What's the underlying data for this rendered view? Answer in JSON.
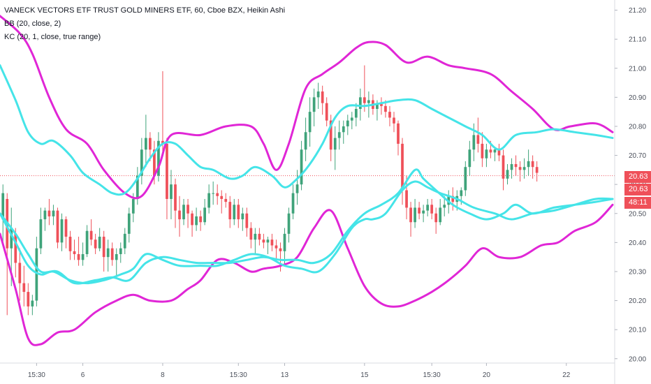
{
  "legend": {
    "title": "VANECK VECTORS ETF TRUST GOLD MINERS ETF, 60, Cboe BZX, Heikin Ashi",
    "bb": "BB (20, close, 2)",
    "kc": "KC (20, 1, close, true range)"
  },
  "price_tags": {
    "last_top": "20.63",
    "last_bottom": "20.63",
    "countdown": "48:11"
  },
  "colors": {
    "up": "#3fa37a",
    "down": "#ef5059",
    "bb": "#e026d6",
    "kc": "#45e4e8",
    "last_line": "#ef5059",
    "axis_text": "#4a4f5a",
    "tag_bg": "#ef5059"
  },
  "chart_data": {
    "type": "candlestick",
    "y_axis": {
      "position": "right",
      "ylim": [
        19.985,
        21.235
      ],
      "ticks": [
        21.2,
        21.1,
        21.0,
        20.9,
        20.8,
        20.7,
        20.6,
        20.5,
        20.4,
        20.3,
        20.2,
        20.1,
        20.0
      ],
      "tick_labels": [
        "21.20",
        "21.10",
        "21.00",
        "20.90",
        "20.80",
        "20.70",
        "20.60",
        "20.50",
        "20.40",
        "20.30",
        "20.20",
        "20.10",
        "20.00"
      ]
    },
    "x_axis": {
      "bar_index_range": [
        -0.7,
        145.5
      ],
      "tick_labels": [
        "15:30",
        "6",
        "8",
        "15:30",
        "13",
        "15",
        "15:30",
        "20",
        "22"
      ],
      "tick_bar_index": [
        8,
        19,
        38,
        56,
        67,
        86,
        102,
        115,
        134
      ]
    },
    "last_price": 20.63,
    "candles_ohlc": [
      [
        20.48,
        20.6,
        20.4,
        20.57
      ],
      [
        20.55,
        20.57,
        20.15,
        20.38
      ],
      [
        20.38,
        20.52,
        20.25,
        20.45
      ],
      [
        20.43,
        20.45,
        20.28,
        20.33
      ],
      [
        20.33,
        20.38,
        20.2,
        20.26
      ],
      [
        20.26,
        20.32,
        20.18,
        20.23
      ],
      [
        20.23,
        20.26,
        20.15,
        20.18
      ],
      [
        20.18,
        20.22,
        20.15,
        20.2
      ],
      [
        20.2,
        20.42,
        20.18,
        20.38
      ],
      [
        20.38,
        20.52,
        20.36,
        20.48
      ],
      [
        20.48,
        20.52,
        20.44,
        20.51
      ],
      [
        20.51,
        20.55,
        20.46,
        20.49
      ],
      [
        20.49,
        20.53,
        20.46,
        20.51
      ],
      [
        20.51,
        20.52,
        20.38,
        20.4
      ],
      [
        20.4,
        20.5,
        20.37,
        20.48
      ],
      [
        20.48,
        20.49,
        20.38,
        20.42
      ],
      [
        20.42,
        20.44,
        20.34,
        20.37
      ],
      [
        20.37,
        20.41,
        20.34,
        20.36
      ],
      [
        20.36,
        20.42,
        20.32,
        20.34
      ],
      [
        20.34,
        20.4,
        20.32,
        20.36
      ],
      [
        20.36,
        20.46,
        20.35,
        20.44
      ],
      [
        20.44,
        20.48,
        20.39,
        20.41
      ],
      [
        20.41,
        20.43,
        20.36,
        20.38
      ],
      [
        20.38,
        20.45,
        20.37,
        20.42
      ],
      [
        20.42,
        20.44,
        20.3,
        20.35
      ],
      [
        20.35,
        20.41,
        20.3,
        20.38
      ],
      [
        20.38,
        20.4,
        20.32,
        20.34
      ],
      [
        20.34,
        20.38,
        20.28,
        20.36
      ],
      [
        20.36,
        20.4,
        20.33,
        20.38
      ],
      [
        20.38,
        20.45,
        20.36,
        20.43
      ],
      [
        20.43,
        20.52,
        20.4,
        20.5
      ],
      [
        20.5,
        20.57,
        20.47,
        20.55
      ],
      [
        20.55,
        20.66,
        20.53,
        20.63
      ],
      [
        20.63,
        20.76,
        20.6,
        20.72
      ],
      [
        20.72,
        20.84,
        20.66,
        20.76
      ],
      [
        20.76,
        20.78,
        20.68,
        20.72
      ],
      [
        20.72,
        20.75,
        20.6,
        20.63
      ],
      [
        20.63,
        20.78,
        20.61,
        20.75
      ],
      [
        20.75,
        20.99,
        20.7,
        20.74
      ],
      [
        20.74,
        20.76,
        20.48,
        20.55
      ],
      [
        20.55,
        20.65,
        20.48,
        20.6
      ],
      [
        20.6,
        20.62,
        20.45,
        20.51
      ],
      [
        20.51,
        20.56,
        20.42,
        20.48
      ],
      [
        20.48,
        20.55,
        20.46,
        20.53
      ],
      [
        20.53,
        20.55,
        20.45,
        20.5
      ],
      [
        20.5,
        20.51,
        20.42,
        20.46
      ],
      [
        20.46,
        20.52,
        20.44,
        20.49
      ],
      [
        20.49,
        20.51,
        20.44,
        20.47
      ],
      [
        20.47,
        20.55,
        20.46,
        20.52
      ],
      [
        20.52,
        20.6,
        20.5,
        20.57
      ],
      [
        20.57,
        20.61,
        20.53,
        20.57
      ],
      [
        20.57,
        20.6,
        20.53,
        20.56
      ],
      [
        20.56,
        20.58,
        20.5,
        20.55
      ],
      [
        20.55,
        20.57,
        20.52,
        20.54
      ],
      [
        20.54,
        20.56,
        20.45,
        20.48
      ],
      [
        20.48,
        20.55,
        20.46,
        20.53
      ],
      [
        20.53,
        20.55,
        20.45,
        20.48
      ],
      [
        20.48,
        20.52,
        20.44,
        20.5
      ],
      [
        20.5,
        20.52,
        20.42,
        20.45
      ],
      [
        20.45,
        20.47,
        20.38,
        20.41
      ],
      [
        20.41,
        20.45,
        20.36,
        20.43
      ],
      [
        20.43,
        20.45,
        20.39,
        20.41
      ],
      [
        20.41,
        20.43,
        20.38,
        20.4
      ],
      [
        20.4,
        20.42,
        20.36,
        20.41
      ],
      [
        20.41,
        20.43,
        20.37,
        20.39
      ],
      [
        20.39,
        20.41,
        20.34,
        20.38
      ],
      [
        20.38,
        20.4,
        20.3,
        20.37
      ],
      [
        20.37,
        20.45,
        20.32,
        20.43
      ],
      [
        20.43,
        20.52,
        20.4,
        20.5
      ],
      [
        20.5,
        20.6,
        20.48,
        20.57
      ],
      [
        20.57,
        20.65,
        20.53,
        20.6
      ],
      [
        20.6,
        20.75,
        20.58,
        20.72
      ],
      [
        20.72,
        20.83,
        20.68,
        20.78
      ],
      [
        20.78,
        20.9,
        20.73,
        20.85
      ],
      [
        20.85,
        20.93,
        20.8,
        20.9
      ],
      [
        20.9,
        20.95,
        20.86,
        20.92
      ],
      [
        20.92,
        20.94,
        20.84,
        20.88
      ],
      [
        20.88,
        20.9,
        20.8,
        20.82
      ],
      [
        20.82,
        20.84,
        20.68,
        20.72
      ],
      [
        20.72,
        20.8,
        20.65,
        20.76
      ],
      [
        20.76,
        20.82,
        20.72,
        20.78
      ],
      [
        20.78,
        20.82,
        20.74,
        20.8
      ],
      [
        20.8,
        20.84,
        20.77,
        20.82
      ],
      [
        20.82,
        20.85,
        20.79,
        20.83
      ],
      [
        20.83,
        20.88,
        20.8,
        20.86
      ],
      [
        20.86,
        20.93,
        20.82,
        20.9
      ],
      [
        20.9,
        21.01,
        20.85,
        20.88
      ],
      [
        20.88,
        20.92,
        20.83,
        20.89
      ],
      [
        20.89,
        20.91,
        20.84,
        20.86
      ],
      [
        20.86,
        20.89,
        20.82,
        20.88
      ],
      [
        20.88,
        20.9,
        20.84,
        20.87
      ],
      [
        20.87,
        20.89,
        20.83,
        20.85
      ],
      [
        20.85,
        20.87,
        20.8,
        20.83
      ],
      [
        20.83,
        20.85,
        20.78,
        20.81
      ],
      [
        20.81,
        20.82,
        20.7,
        20.74
      ],
      [
        20.74,
        20.76,
        20.53,
        20.58
      ],
      [
        20.58,
        20.63,
        20.48,
        20.52
      ],
      [
        20.52,
        20.54,
        20.42,
        20.47
      ],
      [
        20.47,
        20.55,
        20.45,
        20.52
      ],
      [
        20.52,
        20.54,
        20.48,
        20.5
      ],
      [
        20.5,
        20.53,
        20.47,
        20.51
      ],
      [
        20.51,
        20.55,
        20.49,
        20.53
      ],
      [
        20.53,
        20.55,
        20.48,
        20.5
      ],
      [
        20.5,
        20.52,
        20.43,
        20.47
      ],
      [
        20.47,
        20.55,
        20.46,
        20.52
      ],
      [
        20.52,
        20.56,
        20.49,
        20.53
      ],
      [
        20.53,
        20.58,
        20.5,
        20.56
      ],
      [
        20.56,
        20.59,
        20.51,
        20.54
      ],
      [
        20.54,
        20.58,
        20.51,
        20.56
      ],
      [
        20.56,
        20.59,
        20.53,
        20.58
      ],
      [
        20.58,
        20.68,
        20.56,
        20.66
      ],
      [
        20.66,
        20.75,
        20.63,
        20.72
      ],
      [
        20.72,
        20.81,
        20.68,
        20.77
      ],
      [
        20.77,
        20.83,
        20.71,
        20.74
      ],
      [
        20.74,
        20.78,
        20.66,
        20.69
      ],
      [
        20.69,
        20.74,
        20.66,
        20.72
      ],
      [
        20.72,
        20.75,
        20.69,
        20.71
      ],
      [
        20.71,
        20.73,
        20.68,
        20.72
      ],
      [
        20.72,
        20.74,
        20.68,
        20.7
      ],
      [
        20.7,
        20.72,
        20.58,
        20.62
      ],
      [
        20.62,
        20.67,
        20.6,
        20.65
      ],
      [
        20.65,
        20.69,
        20.62,
        20.67
      ],
      [
        20.67,
        20.7,
        20.63,
        20.66
      ],
      [
        20.66,
        20.68,
        20.61,
        20.65
      ],
      [
        20.65,
        20.69,
        20.62,
        20.66
      ],
      [
        20.66,
        20.72,
        20.63,
        20.68
      ],
      [
        20.68,
        20.7,
        20.62,
        20.66
      ],
      [
        20.66,
        20.68,
        20.61,
        20.64
      ]
    ],
    "series": [
      {
        "name": "BB (20, close, 2)",
        "kind": "upper",
        "color": "#e026d6",
        "x": [
          -0.7,
          4,
          7,
          11,
          15,
          20,
          24,
          29,
          33,
          37,
          40,
          47,
          53,
          59,
          62,
          65,
          68,
          72,
          76,
          80,
          84,
          87,
          91,
          96,
          101,
          106,
          110,
          116,
          121,
          126,
          131,
          135,
          141,
          145
        ],
        "y": [
          21.18,
          21.12,
          21.05,
          20.9,
          20.79,
          20.74,
          20.65,
          20.57,
          20.56,
          20.66,
          20.77,
          20.77,
          20.8,
          20.8,
          20.74,
          20.65,
          20.74,
          20.93,
          20.98,
          21.02,
          21.07,
          21.09,
          21.08,
          21.02,
          21.04,
          21.01,
          21.0,
          20.98,
          20.92,
          20.86,
          20.79,
          20.8,
          20.81,
          20.78
        ]
      },
      {
        "name": "BB (20, close, 2)",
        "kind": "lower",
        "color": "#e026d6",
        "x": [
          -0.7,
          3,
          6,
          9,
          13,
          17,
          22,
          27,
          31,
          35,
          40,
          44,
          47,
          51,
          55,
          59,
          62,
          66,
          70,
          74,
          78,
          82,
          86,
          90,
          94,
          98,
          102,
          106,
          110,
          114,
          118,
          123,
          128,
          132,
          136,
          141,
          145
        ],
        "y": [
          20.43,
          20.24,
          20.07,
          20.05,
          20.09,
          20.1,
          20.16,
          20.2,
          20.22,
          20.2,
          20.2,
          20.24,
          20.27,
          20.34,
          20.33,
          20.3,
          20.31,
          20.32,
          20.35,
          20.45,
          20.51,
          20.38,
          20.25,
          20.19,
          20.18,
          20.2,
          20.23,
          20.27,
          20.32,
          20.38,
          20.35,
          20.35,
          20.39,
          20.4,
          20.44,
          20.47,
          20.53
        ]
      },
      {
        "name": "KC (20, 1, close, true range)",
        "kind": "upper",
        "color": "#45e4e8",
        "x": [
          -0.7,
          3,
          6,
          9,
          12,
          16,
          19,
          23,
          26,
          29,
          32,
          35,
          38,
          41,
          44,
          47,
          50,
          54,
          57,
          60,
          64,
          67,
          70,
          73,
          76,
          79,
          82,
          86,
          90,
          94,
          98,
          102,
          106,
          110,
          114,
          118,
          122,
          127,
          131,
          136,
          141,
          145
        ],
        "y": [
          21.01,
          20.89,
          20.78,
          20.74,
          20.75,
          20.7,
          20.64,
          20.6,
          20.57,
          20.57,
          20.62,
          20.69,
          20.74,
          20.74,
          20.7,
          20.66,
          20.65,
          20.62,
          20.63,
          20.66,
          20.63,
          20.59,
          20.62,
          20.67,
          20.74,
          20.83,
          20.87,
          20.87,
          20.88,
          20.89,
          20.89,
          20.86,
          20.83,
          20.8,
          20.77,
          20.72,
          20.77,
          20.78,
          20.79,
          20.78,
          20.77,
          20.76
        ]
      },
      {
        "name": "KC (20, 1, close, true range)",
        "kind": "middle",
        "color": "#45e4e8",
        "x": [
          -0.7,
          3,
          6,
          9,
          12,
          16,
          20,
          24,
          28,
          31,
          34,
          38,
          42,
          47,
          51,
          55,
          59,
          63,
          67,
          71,
          75,
          79,
          83,
          86,
          88,
          91,
          95,
          98,
          101,
          104,
          108,
          112,
          117,
          121,
          126,
          131,
          136,
          141,
          145
        ],
        "y": [
          20.5,
          20.4,
          20.32,
          20.29,
          20.3,
          20.27,
          20.26,
          20.27,
          20.29,
          20.31,
          20.36,
          20.34,
          20.32,
          20.32,
          20.32,
          20.34,
          20.36,
          20.35,
          20.32,
          20.31,
          20.3,
          20.36,
          20.45,
          20.48,
          20.48,
          20.5,
          20.58,
          20.61,
          20.59,
          20.57,
          20.55,
          20.52,
          20.5,
          20.48,
          20.5,
          20.51,
          20.53,
          20.55,
          20.55
        ]
      },
      {
        "name": "KC (20, 1, close, true range)",
        "kind": "lower",
        "color": "#45e4e8",
        "x": [
          -0.7,
          3,
          6,
          9,
          13,
          17,
          22,
          26,
          30,
          34,
          38,
          42,
          46,
          50,
          54,
          58,
          62,
          66,
          70,
          74,
          78,
          82,
          86,
          90,
          94,
          98,
          100,
          103,
          107,
          111,
          115,
          119,
          122,
          126,
          131,
          136,
          141,
          145
        ],
        "y": [
          20.5,
          20.43,
          20.36,
          20.3,
          20.3,
          20.26,
          20.27,
          20.28,
          20.27,
          20.33,
          20.35,
          20.34,
          20.33,
          20.33,
          20.33,
          20.34,
          20.35,
          20.34,
          20.34,
          20.33,
          20.36,
          20.44,
          20.5,
          20.53,
          20.57,
          20.65,
          20.62,
          20.58,
          20.53,
          20.5,
          20.48,
          20.5,
          20.53,
          20.5,
          20.52,
          20.53,
          20.54,
          20.55
        ]
      }
    ]
  }
}
